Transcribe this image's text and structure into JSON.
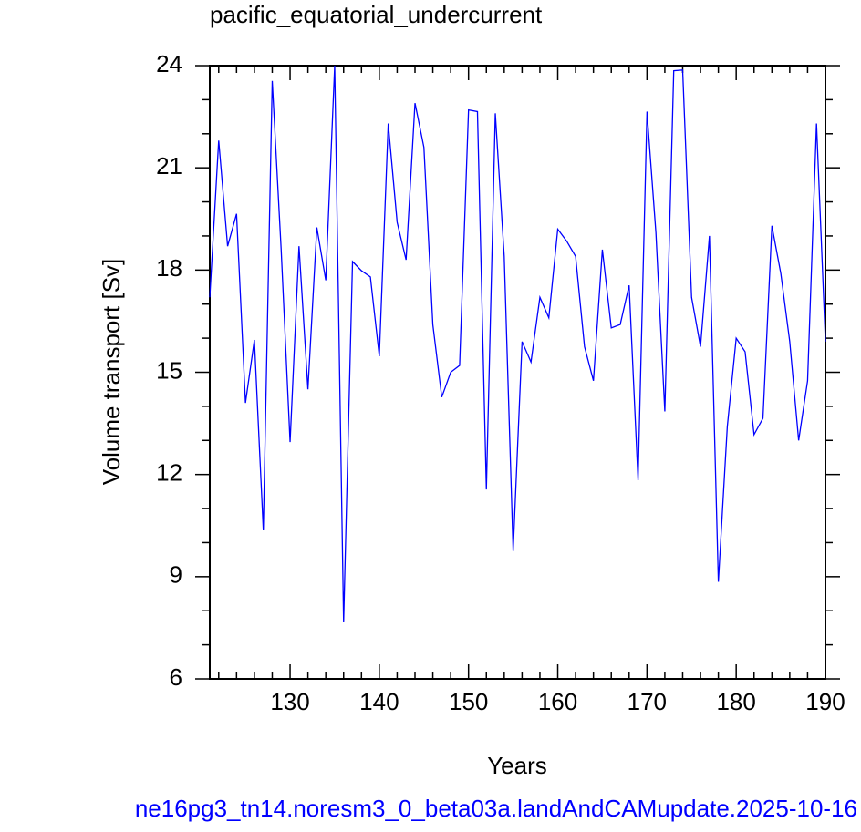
{
  "chart_data": {
    "type": "line",
    "title": "pacific_equatorial_undercurrent",
    "x_label": "Years",
    "y_label": "Volume transport [Sv]",
    "footer": "ne16pg3_tn14.noresm3_0_beta03a.landAndCAMupdate.2025-10-16",
    "x": [
      121,
      122,
      123,
      124,
      125,
      126,
      127,
      128,
      129,
      130,
      131,
      132,
      133,
      134,
      135,
      136,
      137,
      138,
      139,
      140,
      141,
      142,
      143,
      144,
      145,
      146,
      147,
      148,
      149,
      150,
      151,
      152,
      153,
      154,
      155,
      156,
      157,
      158,
      159,
      160,
      161,
      162,
      163,
      164,
      165,
      166,
      167,
      168,
      169,
      170,
      171,
      172,
      173,
      174,
      175,
      176,
      177,
      178,
      179,
      180,
      181,
      182,
      183,
      184,
      185,
      186,
      187,
      188,
      189,
      190
    ],
    "series": [
      {
        "color": "#0000ff",
        "values": [
          17.2,
          21.8,
          18.7,
          19.65,
          14.1,
          15.95,
          10.36,
          23.55,
          18.6,
          12.95,
          18.7,
          14.5,
          19.25,
          17.7,
          24.0,
          7.66,
          18.25,
          17.98,
          17.8,
          15.47,
          22.3,
          19.4,
          18.3,
          22.9,
          21.6,
          16.4,
          14.27,
          15.0,
          15.2,
          22.7,
          22.65,
          11.56,
          22.6,
          18.4,
          9.75,
          15.9,
          15.3,
          17.2,
          16.6,
          19.2,
          18.85,
          18.4,
          15.75,
          14.75,
          18.6,
          16.3,
          16.4,
          17.55,
          11.83,
          22.65,
          19.1,
          13.85,
          23.85,
          23.87,
          17.2,
          15.75,
          19.0,
          8.85,
          13.4,
          16.0,
          15.6,
          13.17,
          13.65,
          19.3,
          17.9,
          15.9,
          13.0,
          14.75,
          22.3,
          15.9
        ]
      }
    ],
    "xlim": [
      121,
      190
    ],
    "ylim": [
      6,
      24
    ],
    "xticks": [
      130,
      140,
      150,
      160,
      170,
      180,
      190
    ],
    "yticks": [
      6,
      9,
      12,
      15,
      18,
      21,
      24
    ],
    "xminorticks": [
      122,
      124,
      126,
      128,
      132,
      134,
      136,
      138,
      142,
      144,
      146,
      148,
      152,
      154,
      156,
      158,
      162,
      164,
      166,
      168,
      172,
      174,
      176,
      178,
      182,
      184,
      186,
      188
    ],
    "yminorticks": [
      7,
      8,
      10,
      11,
      13,
      14,
      16,
      17,
      19,
      20,
      22,
      23
    ]
  }
}
